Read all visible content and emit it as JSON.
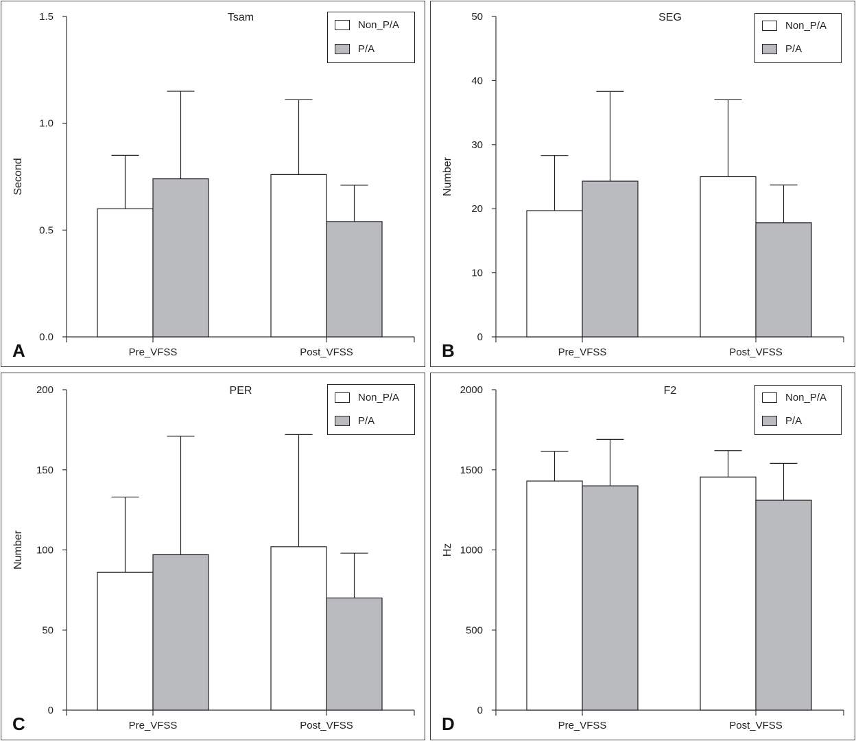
{
  "legend": {
    "series": [
      "Non_P/A",
      "P/A"
    ]
  },
  "colors": {
    "non_pa": "#ffffff",
    "pa": "#babbbf",
    "axis": "#333333",
    "frame": "#3a3a3a"
  },
  "panels": [
    {
      "letter": "A",
      "title": "Tsam",
      "ylabel": "Second",
      "yticks": [
        "1.5",
        "1.0",
        "0.5",
        "0.0"
      ]
    },
    {
      "letter": "B",
      "title": "SEG",
      "ylabel": "Number",
      "yticks": [
        "50",
        "40",
        "30",
        "20",
        "10",
        "0"
      ]
    },
    {
      "letter": "C",
      "title": "PER",
      "ylabel": "Number",
      "yticks": [
        "200",
        "150",
        "100",
        "50",
        "0"
      ]
    },
    {
      "letter": "D",
      "title": "F2",
      "ylabel": "Hz",
      "yticks": [
        "2000",
        "1500",
        "1000",
        "500",
        "0"
      ]
    }
  ],
  "chart_data": [
    {
      "type": "bar",
      "title": "Tsam",
      "xlabel": "",
      "ylabel": "Second",
      "categories": [
        "Pre_VFSS",
        "Post_VFSS"
      ],
      "ylim": [
        0,
        1.5
      ],
      "yticks": [
        0.0,
        0.5,
        1.0,
        1.5
      ],
      "series": [
        {
          "name": "Non_P/A",
          "values": [
            0.6,
            0.76
          ],
          "error_upper": [
            0.85,
            1.11
          ]
        },
        {
          "name": "P/A",
          "values": [
            0.74,
            0.54
          ],
          "error_upper": [
            1.15,
            0.71
          ]
        }
      ],
      "legend": "top-right",
      "grid": false
    },
    {
      "type": "bar",
      "title": "SEG",
      "xlabel": "",
      "ylabel": "Number",
      "categories": [
        "Pre_VFSS",
        "Post_VFSS"
      ],
      "ylim": [
        0,
        50
      ],
      "yticks": [
        0,
        10,
        20,
        30,
        40,
        50
      ],
      "series": [
        {
          "name": "Non_P/A",
          "values": [
            19.7,
            25.0
          ],
          "error_upper": [
            28.3,
            37.0
          ]
        },
        {
          "name": "P/A",
          "values": [
            24.3,
            17.8
          ],
          "error_upper": [
            38.3,
            23.7
          ]
        }
      ],
      "legend": "top-right",
      "grid": false
    },
    {
      "type": "bar",
      "title": "PER",
      "xlabel": "",
      "ylabel": "Number",
      "categories": [
        "Pre_VFSS",
        "Post_VFSS"
      ],
      "ylim": [
        0,
        200
      ],
      "yticks": [
        0,
        50,
        100,
        150,
        200
      ],
      "series": [
        {
          "name": "Non_P/A",
          "values": [
            86,
            102
          ],
          "error_upper": [
            133,
            172
          ]
        },
        {
          "name": "P/A",
          "values": [
            97,
            70
          ],
          "error_upper": [
            171,
            98
          ]
        }
      ],
      "legend": "top-right",
      "grid": false
    },
    {
      "type": "bar",
      "title": "F2",
      "xlabel": "",
      "ylabel": "Hz",
      "categories": [
        "Pre_VFSS",
        "Post_VFSS"
      ],
      "ylim": [
        0,
        2000
      ],
      "yticks": [
        0,
        500,
        1000,
        1500,
        2000
      ],
      "series": [
        {
          "name": "Non_P/A",
          "values": [
            1430,
            1455
          ],
          "error_upper": [
            1615,
            1620
          ]
        },
        {
          "name": "P/A",
          "values": [
            1400,
            1310
          ],
          "error_upper": [
            1690,
            1540
          ]
        }
      ],
      "legend": "top-right",
      "grid": false
    }
  ]
}
